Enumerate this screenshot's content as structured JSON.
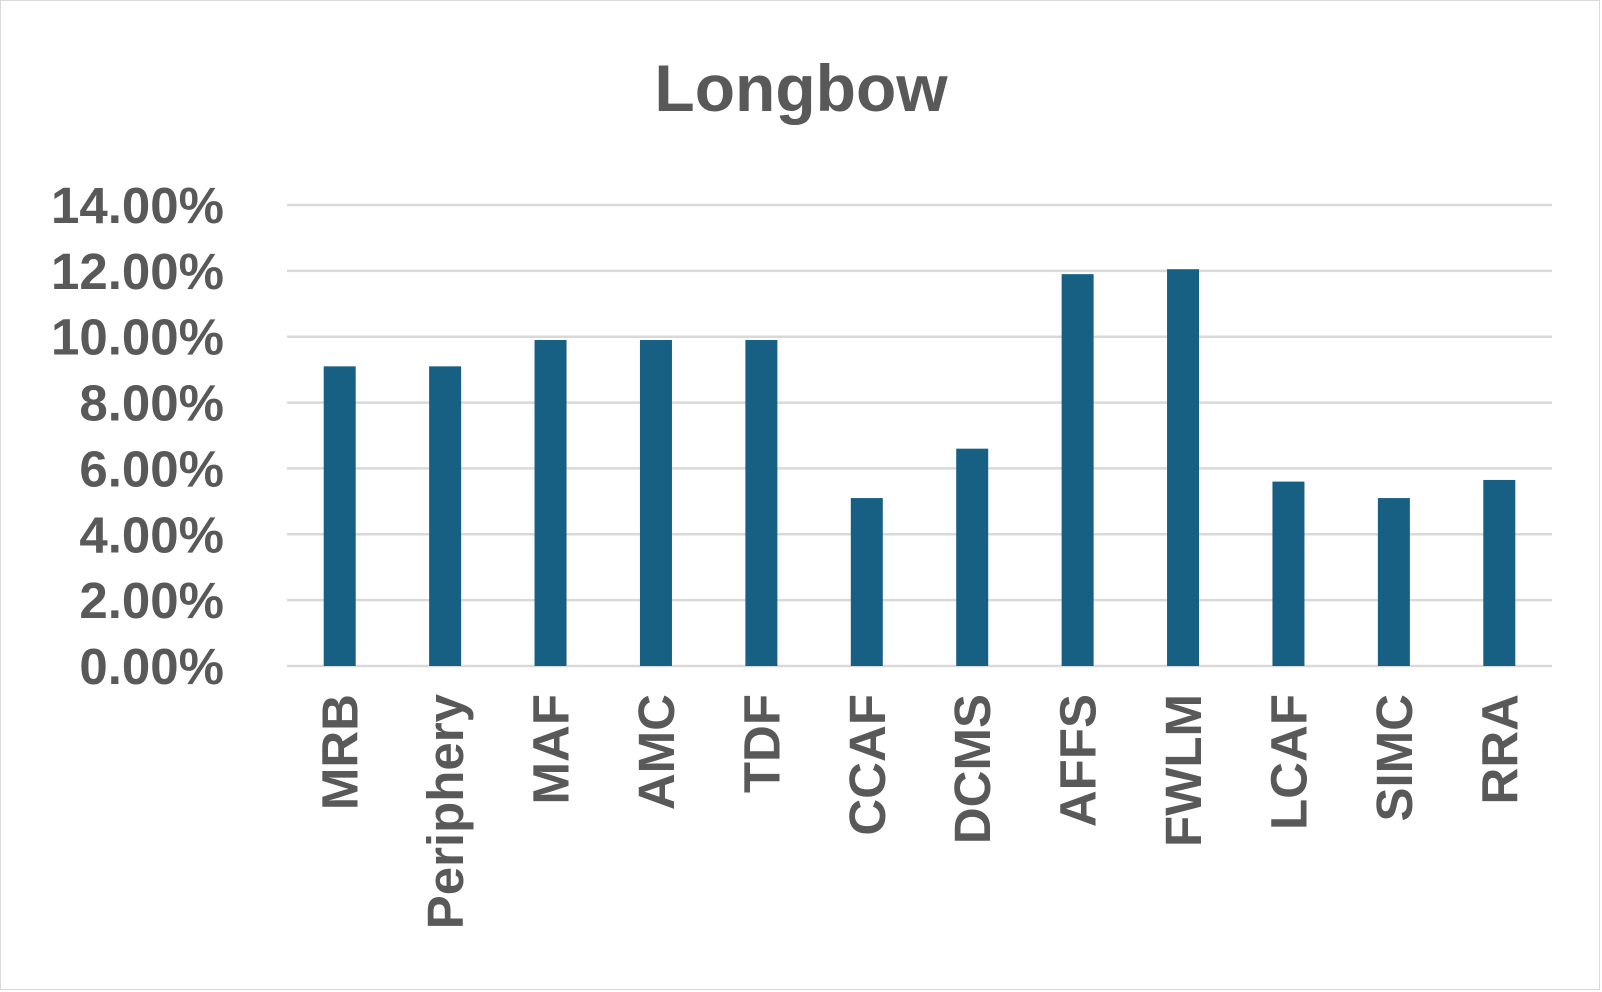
{
  "chart_data": {
    "type": "bar",
    "title": "Longbow",
    "xlabel": "",
    "ylabel": "",
    "categories": [
      "MRB",
      "Periphery",
      "MAF",
      "AMC",
      "TDF",
      "CCAF",
      "DCMS",
      "AFFS",
      "FWLM",
      "LCAF",
      "SIMC",
      "RRA"
    ],
    "values": [
      9.1,
      9.1,
      9.9,
      9.9,
      9.9,
      5.1,
      6.6,
      11.9,
      12.05,
      5.6,
      5.1,
      5.65
    ],
    "ylim": [
      0,
      14
    ],
    "yticks": [
      "0.00%",
      "2.00%",
      "4.00%",
      "6.00%",
      "8.00%",
      "10.00%",
      "12.00%",
      "14.00%"
    ],
    "ytick_values": [
      0,
      2,
      4,
      6,
      8,
      10,
      12,
      14
    ],
    "grid": true,
    "legend": "none",
    "colors": {
      "bar": "#175f83",
      "grid": "#d9d9d9",
      "text": "#595959"
    }
  }
}
